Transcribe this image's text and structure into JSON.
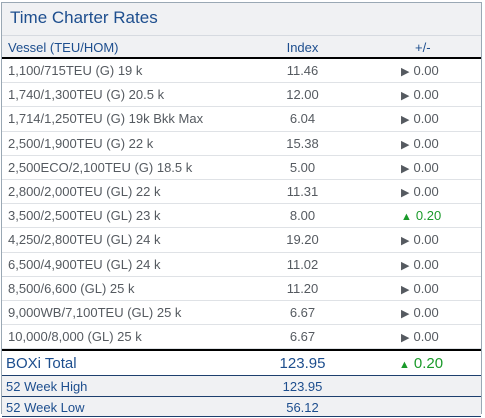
{
  "title": "Time Charter Rates",
  "columns": {
    "vessel": "Vessel (TEU/HOM)",
    "index": "Index",
    "change": "+/-"
  },
  "rows": [
    {
      "vessel": "1,100/715TEU (G) 19 k",
      "index": "11.46",
      "arrow": "▶",
      "change": "0.00",
      "up": false
    },
    {
      "vessel": "1,740/1,300TEU (G) 20.5 k",
      "index": "12.00",
      "arrow": "▶",
      "change": "0.00",
      "up": false
    },
    {
      "vessel": "1,714/1,250TEU (G) 19k Bkk Max",
      "index": "6.04",
      "arrow": "▶",
      "change": "0.00",
      "up": false
    },
    {
      "vessel": "2,500/1,900TEU (G) 22 k",
      "index": "15.38",
      "arrow": "▶",
      "change": "0.00",
      "up": false
    },
    {
      "vessel": "2,500ECO/2,100TEU (G) 18.5 k",
      "index": "5.00",
      "arrow": "▶",
      "change": "0.00",
      "up": false
    },
    {
      "vessel": "2,800/2,000TEU (GL) 22 k",
      "index": "11.31",
      "arrow": "▶",
      "change": "0.00",
      "up": false
    },
    {
      "vessel": "3,500/2,500TEU (GL) 23 k",
      "index": "8.00",
      "arrow": "▲",
      "change": "0.20",
      "up": true
    },
    {
      "vessel": "4,250/2,800TEU (GL) 24 k",
      "index": "19.20",
      "arrow": "▶",
      "change": "0.00",
      "up": false
    },
    {
      "vessel": "6,500/4,900TEU (GL) 24 k",
      "index": "11.02",
      "arrow": "▶",
      "change": "0.00",
      "up": false
    },
    {
      "vessel": "8,500/6,600 (GL) 25 k",
      "index": "11.20",
      "arrow": "▶",
      "change": "0.00",
      "up": false
    },
    {
      "vessel": "9,000WB/7,100TEU (GL) 25 k",
      "index": "6.67",
      "arrow": "▶",
      "change": "0.00",
      "up": false
    },
    {
      "vessel": "10,000/8,000 (GL) 25 k",
      "index": "6.67",
      "arrow": "▶",
      "change": "0.00",
      "up": false
    }
  ],
  "total": {
    "label": "BOXi Total",
    "index": "123.95",
    "arrow": "▲",
    "change": "0.20"
  },
  "week_high": {
    "label": "52 Week High",
    "value": "123.95"
  },
  "week_low": {
    "label": "52 Week Low",
    "value": "56.12"
  },
  "colors": {
    "title": "#1d4e8e",
    "up": "#1a9a2a",
    "text": "#555a60"
  }
}
